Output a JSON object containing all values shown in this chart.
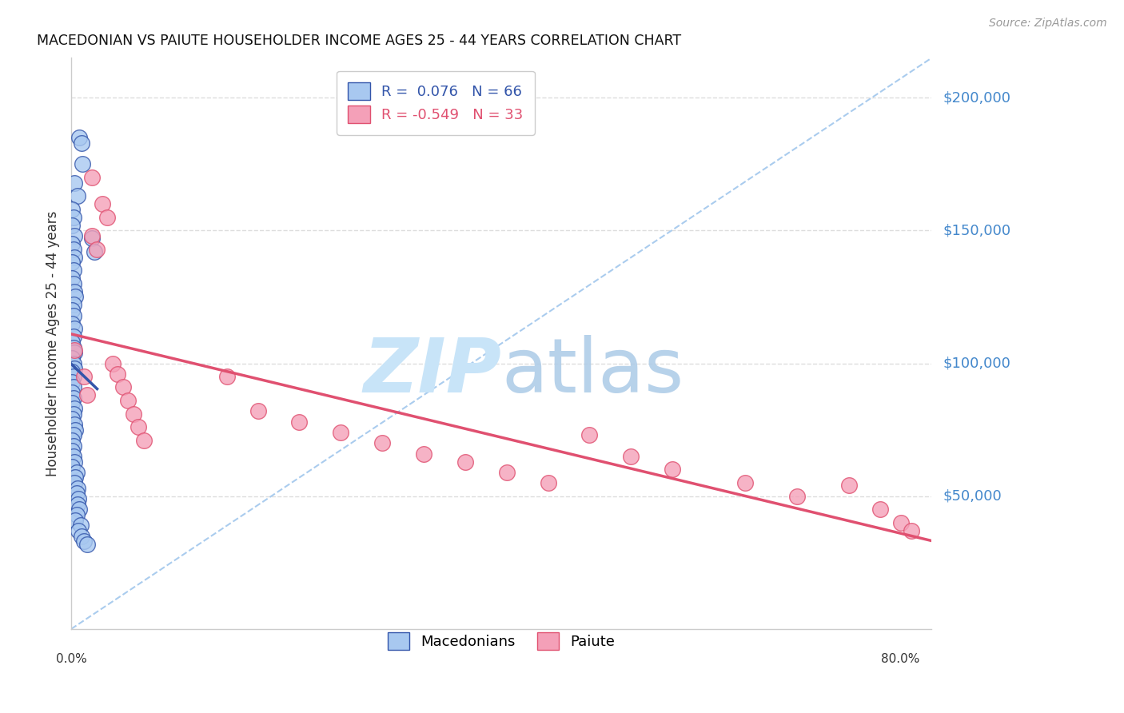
{
  "title": "MACEDONIAN VS PAIUTE HOUSEHOLDER INCOME AGES 25 - 44 YEARS CORRELATION CHART",
  "source": "Source: ZipAtlas.com",
  "ylabel": "Householder Income Ages 25 - 44 years",
  "ytick_labels": [
    "$50,000",
    "$100,000",
    "$150,000",
    "$200,000"
  ],
  "ytick_values": [
    50000,
    100000,
    150000,
    200000
  ],
  "ylim": [
    0,
    215000
  ],
  "xlim": [
    0.0,
    0.83
  ],
  "legend_mac_color": "#A8C8F0",
  "legend_pai_color": "#F4A0B8",
  "blue_line_color": "#3355AA",
  "pink_line_color": "#E05070",
  "dashed_line_color": "#AACCEE",
  "background_color": "#FFFFFF",
  "grid_color": "#DDDDDD",
  "mac_R": 0.076,
  "mac_N": 66,
  "pai_R": -0.549,
  "pai_N": 33,
  "mac_scatter_x": [
    0.008,
    0.01,
    0.011,
    0.003,
    0.006,
    0.001,
    0.002,
    0.001,
    0.003,
    0.001,
    0.002,
    0.003,
    0.001,
    0.002,
    0.001,
    0.002,
    0.003,
    0.004,
    0.002,
    0.001,
    0.002,
    0.001,
    0.003,
    0.002,
    0.001,
    0.002,
    0.003,
    0.001,
    0.002,
    0.003,
    0.001,
    0.002,
    0.001,
    0.002,
    0.001,
    0.002,
    0.001,
    0.003,
    0.002,
    0.001,
    0.003,
    0.004,
    0.002,
    0.001,
    0.002,
    0.001,
    0.002,
    0.003,
    0.001,
    0.005,
    0.004,
    0.003,
    0.006,
    0.005,
    0.007,
    0.006,
    0.008,
    0.005,
    0.004,
    0.009,
    0.007,
    0.01,
    0.012,
    0.015,
    0.02,
    0.022
  ],
  "mac_scatter_y": [
    185000,
    183000,
    175000,
    168000,
    163000,
    158000,
    155000,
    152000,
    148000,
    145000,
    143000,
    140000,
    138000,
    135000,
    132000,
    130000,
    127000,
    125000,
    122000,
    120000,
    118000,
    115000,
    113000,
    110000,
    108000,
    106000,
    104000,
    102000,
    100000,
    98000,
    97000,
    95000,
    93000,
    91000,
    89000,
    87000,
    85000,
    83000,
    81000,
    79000,
    77000,
    75000,
    73000,
    71000,
    69000,
    67000,
    65000,
    63000,
    61000,
    59000,
    57000,
    55000,
    53000,
    51000,
    49000,
    47000,
    45000,
    43000,
    41000,
    39000,
    37000,
    35000,
    33000,
    32000,
    147000,
    142000
  ],
  "pai_scatter_x": [
    0.003,
    0.02,
    0.03,
    0.035,
    0.02,
    0.025,
    0.012,
    0.015,
    0.04,
    0.045,
    0.05,
    0.055,
    0.06,
    0.065,
    0.15,
    0.18,
    0.22,
    0.26,
    0.3,
    0.34,
    0.38,
    0.42,
    0.46,
    0.5,
    0.54,
    0.58,
    0.65,
    0.7,
    0.75,
    0.78,
    0.8,
    0.81,
    0.07
  ],
  "pai_scatter_y": [
    105000,
    170000,
    160000,
    155000,
    148000,
    143000,
    95000,
    88000,
    100000,
    96000,
    91000,
    86000,
    81000,
    76000,
    95000,
    82000,
    78000,
    74000,
    70000,
    66000,
    63000,
    59000,
    55000,
    73000,
    65000,
    60000,
    55000,
    50000,
    54000,
    45000,
    40000,
    37000,
    71000
  ]
}
